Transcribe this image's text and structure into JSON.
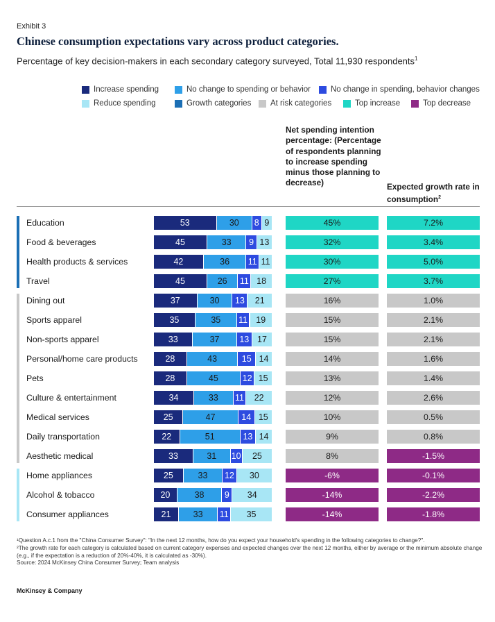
{
  "exhibit_label": "Exhibit 3",
  "title": "Chinese consumption expectations vary across product categories.",
  "subtitle": "Percentage of key decision-makers in each secondary category surveyed, Total 11,930 respondents",
  "subtitle_footnote_mark": "1",
  "colors": {
    "increase": "#1a2a7c",
    "no_change": "#2e9fe8",
    "no_change_behavior": "#2d4be0",
    "reduce": "#a8e6f5",
    "growth": "#1b6fb5",
    "at_risk": "#c8c8c8",
    "top_increase": "#1fd6c5",
    "top_decrease": "#8e2a86"
  },
  "legend": [
    {
      "label": "Increase spending",
      "color_key": "increase"
    },
    {
      "label": "No change to spending or behavior",
      "color_key": "no_change"
    },
    {
      "label": "No change in spending, behavior changes",
      "color_key": "no_change_behavior"
    },
    {
      "label": "Reduce spending",
      "color_key": "reduce"
    },
    {
      "label": "Growth categories",
      "color_key": "growth"
    },
    {
      "label": "At risk categories",
      "color_key": "at_risk"
    },
    {
      "label": "Top increase",
      "color_key": "top_increase"
    },
    {
      "label": "Top decrease",
      "color_key": "top_decrease"
    }
  ],
  "col_header_net": "Net spending intention percentage: (Percentage of respondents planning to increase spending minus those planning to decrease)",
  "col_header_growth": "Expected growth rate in consumption",
  "col_header_growth_footnote_mark": "2",
  "chart_data": {
    "type": "bar",
    "stacked": true,
    "orientation": "horizontal",
    "categories": [
      "Education",
      "Food & beverages",
      "Health products & services",
      "Travel",
      "Dining out",
      "Sports apparel",
      "Non-sports apparel",
      "Personal/home care products",
      "Pets",
      "Culture & entertainment",
      "Medical services",
      "Daily transportation",
      "Aesthetic medical",
      "Home appliances",
      "Alcohol & tobacco",
      "Consumer appliances"
    ],
    "groups": [
      "growth",
      "growth",
      "growth",
      "growth",
      "at_risk",
      "at_risk",
      "at_risk",
      "at_risk",
      "at_risk",
      "at_risk",
      "at_risk",
      "at_risk",
      "at_risk",
      "reduce",
      "reduce",
      "reduce"
    ],
    "series": [
      {
        "name": "Increase spending",
        "values": [
          53,
          45,
          42,
          45,
          37,
          35,
          33,
          28,
          28,
          34,
          25,
          22,
          33,
          25,
          20,
          21
        ]
      },
      {
        "name": "No change to spending or behavior",
        "values": [
          30,
          33,
          36,
          26,
          30,
          35,
          37,
          43,
          45,
          33,
          47,
          51,
          31,
          33,
          38,
          33
        ]
      },
      {
        "name": "No change in spending, behavior changes",
        "values": [
          8,
          9,
          11,
          11,
          13,
          11,
          13,
          15,
          12,
          11,
          14,
          13,
          10,
          12,
          9,
          11
        ]
      },
      {
        "name": "Reduce spending",
        "values": [
          9,
          13,
          11,
          18,
          21,
          19,
          17,
          14,
          15,
          22,
          15,
          14,
          25,
          30,
          34,
          35
        ]
      }
    ],
    "net_spending_intention": [
      "45%",
      "32%",
      "30%",
      "27%",
      "16%",
      "15%",
      "15%",
      "14%",
      "13%",
      "12%",
      "10%",
      "9%",
      "8%",
      "-6%",
      "-14%",
      "-14%"
    ],
    "net_spending_status": [
      "top_increase",
      "top_increase",
      "top_increase",
      "top_increase",
      "at_risk",
      "at_risk",
      "at_risk",
      "at_risk",
      "at_risk",
      "at_risk",
      "at_risk",
      "at_risk",
      "at_risk",
      "top_decrease",
      "top_decrease",
      "top_decrease"
    ],
    "expected_growth_rate": [
      "7.2%",
      "3.4%",
      "5.0%",
      "3.7%",
      "1.0%",
      "2.1%",
      "2.1%",
      "1.6%",
      "1.4%",
      "2.6%",
      "0.5%",
      "0.8%",
      "-1.5%",
      "-0.1%",
      "-2.2%",
      "-1.8%"
    ],
    "growth_status": [
      "top_increase",
      "top_increase",
      "top_increase",
      "top_increase",
      "at_risk",
      "at_risk",
      "at_risk",
      "at_risk",
      "at_risk",
      "at_risk",
      "at_risk",
      "at_risk",
      "top_decrease",
      "top_decrease",
      "top_decrease",
      "top_decrease"
    ],
    "xlim": [
      0,
      100
    ]
  },
  "footnotes": [
    "¹Question A.c.1 from the \"China Consumer Survey\": \"In the next 12 months, how do you expect your household's spending in the following categories to change?\".",
    "²The growth rate for each category is calculated based on current category expenses and expected changes over the next 12 months, either by average or the minimum absolute change (e.g., if the expectation is a reduction of 20%-40%, it is calculated as -30%).",
    "Source: 2024 McKinsey China Consumer Survey; Team analysis"
  ],
  "brand": "McKinsey & Company"
}
